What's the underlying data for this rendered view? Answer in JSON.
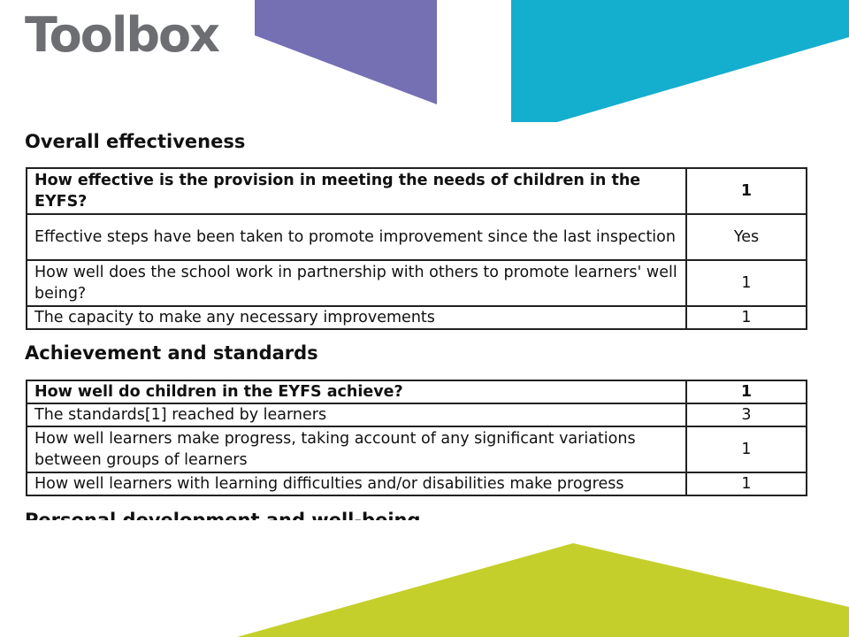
{
  "logo": "Toolbox",
  "colors": {
    "purple": "#7570b3",
    "cyan": "#14aecf",
    "lime": "#c5cf2b",
    "logo_grey": "#6d6e71"
  },
  "sections": [
    {
      "title": "Overall effectiveness",
      "rows": [
        {
          "question": "How effective is the provision in meeting the needs of children in the EYFS?",
          "value": "1"
        },
        {
          "question": "Effective steps have been taken to promote improvement since the last inspection",
          "value": "Yes"
        },
        {
          "question": "How well does the school work in partnership with others to promote learners' well being?",
          "value": "1"
        },
        {
          "question": "The capacity to make any necessary improvements",
          "value": "1"
        }
      ]
    },
    {
      "title": "Achievement and standards",
      "rows": [
        {
          "question": "How well do children in the EYFS achieve?",
          "value": "1"
        },
        {
          "question": "The standards[1] reached by learners",
          "value": "3"
        },
        {
          "question": "How well learners make progress, taking account of any significant variations between groups of learners",
          "value": "1"
        },
        {
          "question": "How well learners with learning difficulties and/or disabilities make progress",
          "value": "1"
        }
      ]
    }
  ],
  "clipped_heading": "Personal development and well-being"
}
